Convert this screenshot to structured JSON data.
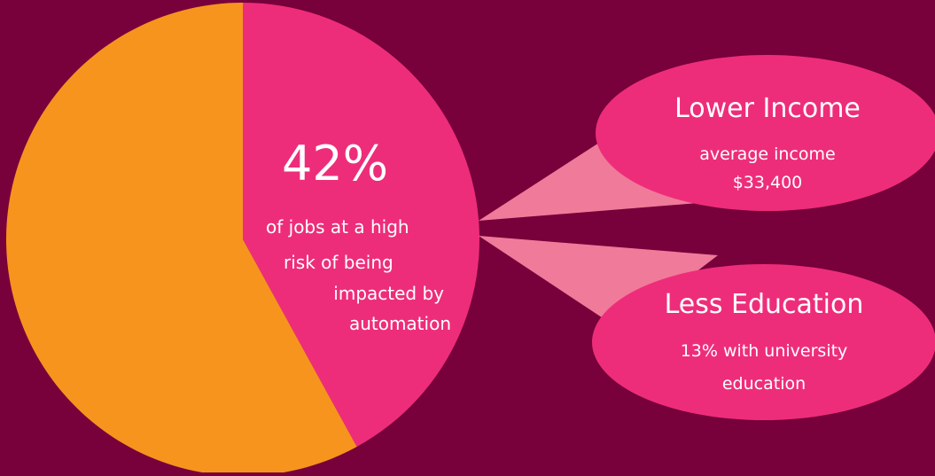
{
  "colors": {
    "background": "#78003b",
    "highlight_slice": "#ee2d7a",
    "other_slice": "#f7941e",
    "wedge": "#f07a9a",
    "text": "#ffffff"
  },
  "chart_data": {
    "type": "pie",
    "title": "",
    "slices": [
      {
        "label": "of jobs at a high risk of being impacted by automation",
        "value": 42,
        "color": "#ee2d7a"
      },
      {
        "label": "",
        "value": 58,
        "color": "#f7941e"
      }
    ]
  },
  "slice_label": {
    "percent": "42%",
    "lines": [
      "of jobs at a high",
      "risk of being",
      "impacted by",
      "automation"
    ]
  },
  "callouts": [
    {
      "title": "Lower Income",
      "lines": [
        "average income",
        "$33,400"
      ]
    },
    {
      "title": "Less Education",
      "lines": [
        "13% with university",
        "education"
      ]
    }
  ]
}
